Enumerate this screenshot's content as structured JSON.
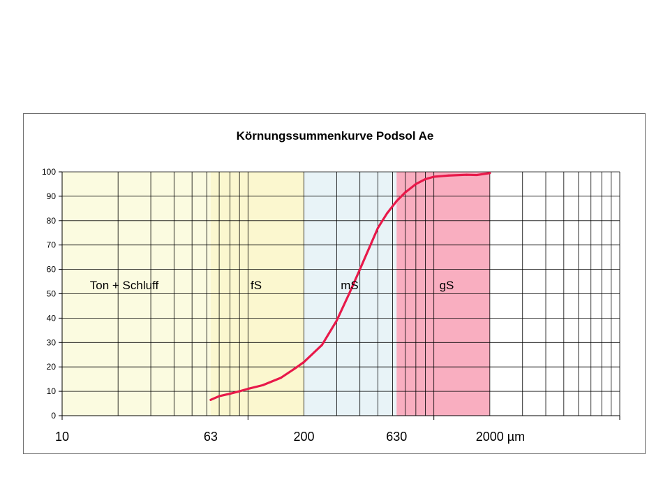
{
  "chart_data": {
    "type": "line",
    "title": "Körnungssummenkurve Podsol Ae",
    "xscale": "log",
    "xlim": [
      10,
      10000
    ],
    "ylim": [
      0,
      100
    ],
    "yticks": [
      0,
      10,
      20,
      30,
      40,
      50,
      60,
      70,
      80,
      90,
      100
    ],
    "xtick_labels": [
      {
        "value": 10,
        "label": "10"
      },
      {
        "value": 63,
        "label": "63"
      },
      {
        "value": 200,
        "label": "200"
      },
      {
        "value": 630,
        "label": "630"
      },
      {
        "value": 2000,
        "label": "2000 µm"
      }
    ],
    "grid": true,
    "bands": [
      {
        "label": "Ton + Schluff",
        "from": 10,
        "to": 63,
        "color": "#fbfbe0"
      },
      {
        "label": "fS",
        "from": 63,
        "to": 200,
        "color": "#fbf7cf"
      },
      {
        "label": "mS",
        "from": 200,
        "to": 630,
        "color": "#e8f3f7"
      },
      {
        "label": "gS",
        "from": 630,
        "to": 2000,
        "color": "#f9aec0"
      }
    ],
    "series": [
      {
        "color": "#e8194a",
        "points": [
          [
            63,
            6.5
          ],
          [
            70,
            8
          ],
          [
            80,
            9
          ],
          [
            90,
            10
          ],
          [
            100,
            11
          ],
          [
            120,
            12.5
          ],
          [
            150,
            15.5
          ],
          [
            180,
            19.5
          ],
          [
            200,
            22
          ],
          [
            250,
            29
          ],
          [
            300,
            39
          ],
          [
            350,
            50
          ],
          [
            400,
            60
          ],
          [
            450,
            69
          ],
          [
            500,
            77
          ],
          [
            560,
            83
          ],
          [
            630,
            88
          ],
          [
            700,
            91.5
          ],
          [
            800,
            95
          ],
          [
            900,
            97
          ],
          [
            1000,
            98
          ],
          [
            1200,
            98.5
          ],
          [
            1500,
            98.8
          ],
          [
            1700,
            98.7
          ],
          [
            2000,
            99.5
          ]
        ]
      }
    ]
  }
}
